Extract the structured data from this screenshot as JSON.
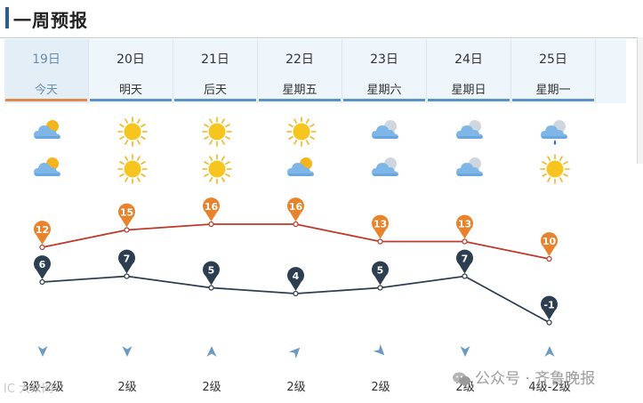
{
  "header": {
    "title": "一周预报"
  },
  "days": [
    {
      "date": "19日",
      "label": "今天",
      "icon_day": "partly-cloudy-icon",
      "icon_night": "partly-cloudy-icon",
      "high": "12",
      "low": "6",
      "wind_dir": "down",
      "wind": "3级-2级"
    },
    {
      "date": "20日",
      "label": "明天",
      "icon_day": "sunny-icon",
      "icon_night": "sunny-icon",
      "high": "15",
      "low": "7",
      "wind_dir": "down",
      "wind": "2级"
    },
    {
      "date": "21日",
      "label": "后天",
      "icon_day": "sunny-icon",
      "icon_night": "sunny-icon",
      "high": "16",
      "low": "5",
      "wind_dir": "up",
      "wind": "2级"
    },
    {
      "date": "22日",
      "label": "星期五",
      "icon_day": "sunny-icon",
      "icon_night": "partly-cloudy-icon",
      "high": "16",
      "low": "4",
      "wind_dir": "up-right",
      "wind": "2级"
    },
    {
      "date": "23日",
      "label": "星期六",
      "icon_day": "cloudy-icon",
      "icon_night": "cloudy-icon",
      "high": "13",
      "low": "5",
      "wind_dir": "down-right",
      "wind": "2级"
    },
    {
      "date": "24日",
      "label": "星期日",
      "icon_day": "cloudy-icon",
      "icon_night": "cloudy-icon",
      "high": "13",
      "low": "7",
      "wind_dir": "down",
      "wind": "2级"
    },
    {
      "date": "25日",
      "label": "星期一",
      "icon_day": "light-rain-icon",
      "icon_night": "sunny-icon",
      "high": "10",
      "low": "-1",
      "wind_dir": "up",
      "wind": "4级-2级"
    }
  ],
  "chart_data": {
    "type": "line",
    "categories": [
      "19日",
      "20日",
      "21日",
      "22日",
      "23日",
      "24日",
      "25日"
    ],
    "series": [
      {
        "values": [
          12,
          15,
          16,
          16,
          13,
          13,
          10
        ],
        "color": "#c0392b",
        "marker_color": "#e8832c"
      },
      {
        "values": [
          6,
          7,
          5,
          4,
          5,
          7,
          -1
        ],
        "color": "#2c3e50",
        "marker_color": "#2c3e50"
      }
    ]
  },
  "watermark": {
    "left": "IC 大众网",
    "right": "公众号 · 齐鲁晚报"
  }
}
